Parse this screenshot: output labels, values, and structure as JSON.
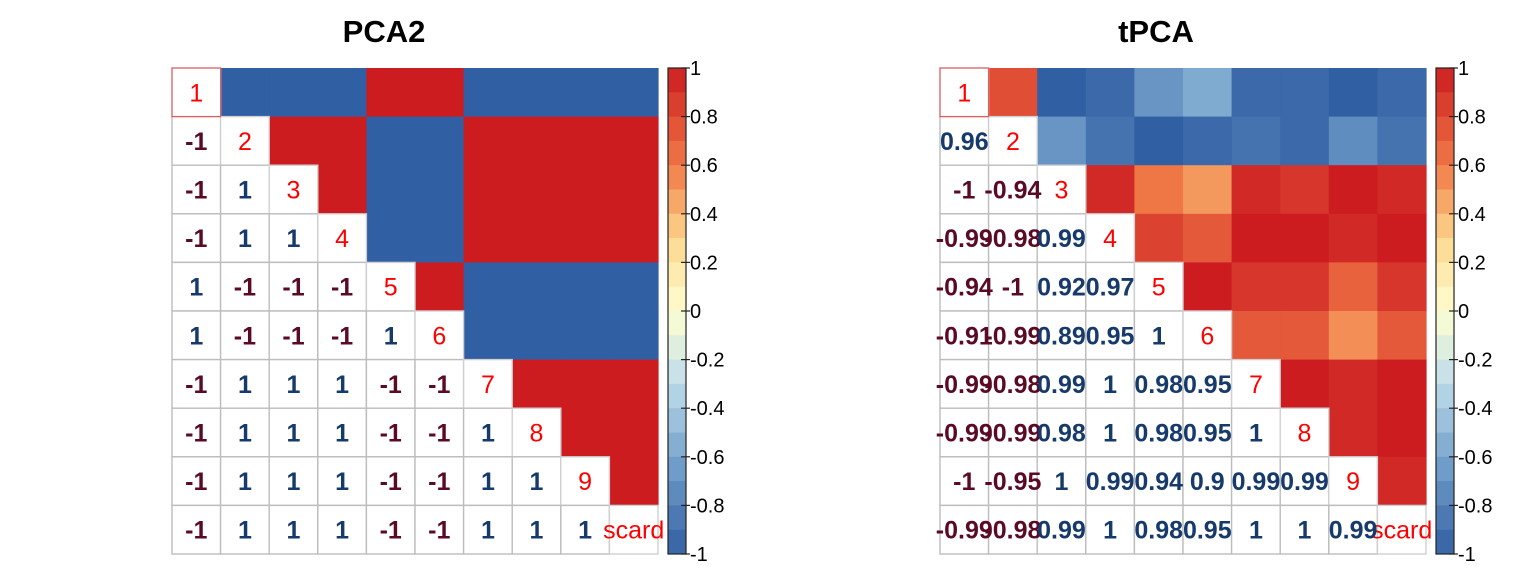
{
  "chart_data": [
    {
      "type": "heatmap",
      "title": "PCA2",
      "variables": [
        "1",
        "2",
        "3",
        "4",
        "5",
        "6",
        "7",
        "8",
        "9",
        "scard"
      ],
      "matrix": [
        [
          1,
          -1,
          -1,
          -1,
          1,
          1,
          -1,
          -1,
          -1,
          -1
        ],
        [
          -1,
          1,
          1,
          1,
          -1,
          -1,
          1,
          1,
          1,
          1
        ],
        [
          -1,
          1,
          1,
          1,
          -1,
          -1,
          1,
          1,
          1,
          1
        ],
        [
          -1,
          1,
          1,
          1,
          -1,
          -1,
          1,
          1,
          1,
          1
        ],
        [
          1,
          -1,
          -1,
          -1,
          1,
          1,
          -1,
          -1,
          -1,
          -1
        ],
        [
          1,
          -1,
          -1,
          -1,
          1,
          1,
          -1,
          -1,
          -1,
          -1
        ],
        [
          -1,
          1,
          1,
          1,
          -1,
          -1,
          1,
          1,
          1,
          1
        ],
        [
          -1,
          1,
          1,
          1,
          -1,
          -1,
          1,
          1,
          1,
          1
        ],
        [
          -1,
          1,
          1,
          1,
          -1,
          -1,
          1,
          1,
          1,
          1
        ],
        [
          -1,
          1,
          1,
          1,
          -1,
          -1,
          1,
          1,
          1,
          1
        ]
      ],
      "lower_labels": [
        [],
        [
          "-1"
        ],
        [
          "-1",
          "1"
        ],
        [
          "-1",
          "1",
          "1"
        ],
        [
          "1",
          "-1",
          "-1",
          "-1"
        ],
        [
          "1",
          "-1",
          "-1",
          "-1",
          "1"
        ],
        [
          "-1",
          "1",
          "1",
          "1",
          "-1",
          "-1"
        ],
        [
          "-1",
          "1",
          "1",
          "1",
          "-1",
          "-1",
          "1"
        ],
        [
          "-1",
          "1",
          "1",
          "1",
          "-1",
          "-1",
          "1",
          "1"
        ],
        [
          "-1",
          "1",
          "1",
          "1",
          "-1",
          "-1",
          "1",
          "1",
          "1"
        ]
      ],
      "legend_ticks": [
        "1",
        "0.8",
        "0.6",
        "0.4",
        "0.2",
        "0",
        "-0.2",
        "-0.4",
        "-0.6",
        "-0.8",
        "-1"
      ],
      "ylim": [
        -1,
        1
      ]
    },
    {
      "type": "heatmap",
      "title": "tPCA",
      "variables": [
        "1",
        "2",
        "3",
        "4",
        "5",
        "6",
        "7",
        "8",
        "9",
        "scard"
      ],
      "matrix": [
        [
          1,
          0.96,
          -1,
          -0.99,
          -0.94,
          -0.91,
          -0.99,
          -0.99,
          -1,
          -0.99
        ],
        [
          0.96,
          1,
          -0.94,
          -0.98,
          -1,
          -0.99,
          -0.98,
          -0.99,
          -0.95,
          -0.98
        ],
        [
          -1,
          -0.94,
          1,
          0.99,
          0.92,
          0.89,
          0.99,
          0.98,
          1,
          0.99
        ],
        [
          -0.99,
          -0.98,
          0.99,
          1,
          0.97,
          0.95,
          1,
          1,
          0.99,
          1
        ],
        [
          -0.94,
          -1,
          0.92,
          0.97,
          1,
          1,
          0.98,
          0.98,
          0.94,
          0.98
        ],
        [
          -0.91,
          -0.99,
          0.89,
          0.95,
          1,
          1,
          0.95,
          0.95,
          0.9,
          0.95
        ],
        [
          -0.99,
          -0.98,
          0.99,
          1,
          0.98,
          0.95,
          1,
          1,
          0.99,
          1
        ],
        [
          -0.99,
          -0.99,
          0.98,
          1,
          0.98,
          0.95,
          1,
          1,
          0.99,
          1
        ],
        [
          -1,
          -0.95,
          1,
          0.99,
          0.94,
          0.9,
          0.99,
          0.99,
          1,
          0.99
        ],
        [
          -0.99,
          -0.98,
          0.99,
          1,
          0.98,
          0.95,
          1,
          1,
          0.99,
          1
        ]
      ],
      "lower_labels": [
        [],
        [
          "0.96"
        ],
        [
          "-1",
          "-0.94"
        ],
        [
          "-0.99",
          "-0.98",
          "0.99"
        ],
        [
          "-0.94",
          "-1",
          "0.92",
          "0.97"
        ],
        [
          "-0.91",
          "-0.99",
          "0.89",
          "0.95",
          "1"
        ],
        [
          "-0.99",
          "-0.98",
          "0.99",
          "1",
          "0.98",
          "0.95"
        ],
        [
          "-0.99",
          "-0.99",
          "0.98",
          "1",
          "0.98",
          "0.95",
          "1"
        ],
        [
          "-1",
          "-0.95",
          "1",
          "0.99",
          "0.94",
          "0.9",
          "0.99",
          "0.99"
        ],
        [
          "-0.99",
          "-0.98",
          "0.99",
          "1",
          "0.98",
          "0.95",
          "1",
          "1",
          "0.99"
        ]
      ],
      "legend_ticks": [
        "1",
        "0.8",
        "0.6",
        "0.4",
        "0.2",
        "0",
        "-0.2",
        "-0.4",
        "-0.6",
        "-0.8",
        "-1"
      ],
      "ylim": [
        -1,
        1
      ]
    }
  ]
}
